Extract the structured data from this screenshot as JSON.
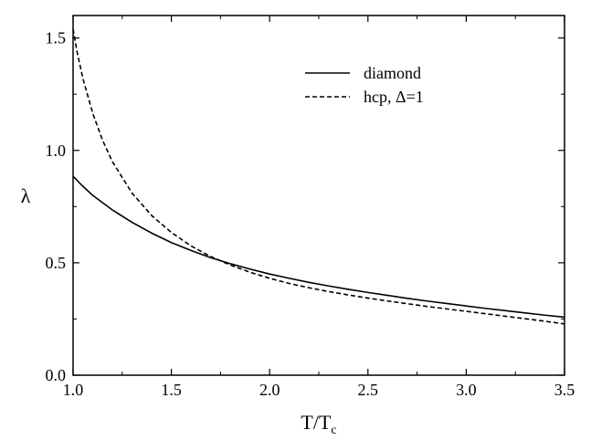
{
  "chart_data": {
    "type": "line",
    "title": "",
    "xlabel": "T/T",
    "xlabel_sub": "c",
    "ylabel": "λ",
    "xlim": [
      1.0,
      3.5
    ],
    "ylim": [
      0.0,
      1.6
    ],
    "xticks": [
      1.0,
      1.5,
      2.0,
      2.5,
      3.0,
      3.5
    ],
    "xtick_labels": [
      "1.0",
      "1.5",
      "2.0",
      "2.5",
      "3.0",
      "3.5"
    ],
    "yticks": [
      0.0,
      0.5,
      1.0,
      1.5
    ],
    "ytick_labels": [
      "0.0",
      "0.5",
      "1.0",
      "1.5"
    ],
    "grid": false,
    "legend_position": "top-right",
    "series": [
      {
        "name": "diamond",
        "style": "solid",
        "color": "#000000",
        "x": [
          1.0,
          1.05,
          1.1,
          1.2,
          1.3,
          1.4,
          1.5,
          1.6,
          1.7,
          1.8,
          1.9,
          2.0,
          2.1,
          2.2,
          2.3,
          2.4,
          2.5,
          2.6,
          2.7,
          2.8,
          2.9,
          3.0,
          3.1,
          3.2,
          3.3,
          3.4,
          3.5
        ],
        "y": [
          0.885,
          0.84,
          0.8,
          0.735,
          0.68,
          0.632,
          0.59,
          0.555,
          0.523,
          0.496,
          0.472,
          0.45,
          0.431,
          0.413,
          0.397,
          0.382,
          0.368,
          0.355,
          0.342,
          0.33,
          0.319,
          0.308,
          0.297,
          0.287,
          0.277,
          0.267,
          0.258
        ]
      },
      {
        "name": "hcp, Δ=1",
        "style": "dashed",
        "color": "#000000",
        "x": [
          1.0,
          1.02,
          1.05,
          1.1,
          1.15,
          1.2,
          1.3,
          1.4,
          1.5,
          1.6,
          1.7,
          1.8,
          1.9,
          2.0,
          2.1,
          2.2,
          2.3,
          2.4,
          2.5,
          2.6,
          2.7,
          2.8,
          2.9,
          3.0,
          3.1,
          3.2,
          3.3,
          3.4,
          3.5
        ],
        "y": [
          1.54,
          1.44,
          1.32,
          1.165,
          1.045,
          0.95,
          0.81,
          0.71,
          0.635,
          0.575,
          0.528,
          0.49,
          0.458,
          0.431,
          0.408,
          0.389,
          0.372,
          0.357,
          0.343,
          0.33,
          0.318,
          0.306,
          0.295,
          0.284,
          0.273,
          0.262,
          0.251,
          0.24,
          0.228
        ]
      }
    ]
  }
}
